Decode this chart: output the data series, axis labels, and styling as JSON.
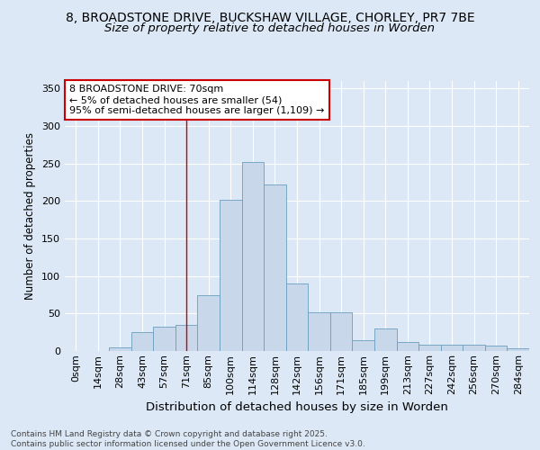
{
  "title1": "8, BROADSTONE DRIVE, BUCKSHAW VILLAGE, CHORLEY, PR7 7BE",
  "title2": "Size of property relative to detached houses in Worden",
  "xlabel": "Distribution of detached houses by size in Worden",
  "ylabel": "Number of detached properties",
  "categories": [
    "0sqm",
    "14sqm",
    "28sqm",
    "43sqm",
    "57sqm",
    "71sqm",
    "85sqm",
    "100sqm",
    "114sqm",
    "128sqm",
    "142sqm",
    "156sqm",
    "171sqm",
    "185sqm",
    "199sqm",
    "213sqm",
    "227sqm",
    "242sqm",
    "256sqm",
    "270sqm",
    "284sqm"
  ],
  "values": [
    0,
    0,
    5,
    25,
    33,
    35,
    75,
    202,
    252,
    222,
    90,
    52,
    52,
    15,
    30,
    12,
    9,
    9,
    9,
    7,
    4
  ],
  "bar_color": "#c8d8ea",
  "bar_edge_color": "#6a9fc0",
  "red_line_x": 5,
  "annotation_text": "8 BROADSTONE DRIVE: 70sqm\n← 5% of detached houses are smaller (54)\n95% of semi-detached houses are larger (1,109) →",
  "annotation_box_color": "#ffffff",
  "annotation_box_edge": "#cc0000",
  "ylim": [
    0,
    360
  ],
  "yticks": [
    0,
    50,
    100,
    150,
    200,
    250,
    300,
    350
  ],
  "bg_color": "#dce8f5",
  "plot_bg": "#dce8f5",
  "footnote": "Contains HM Land Registry data © Crown copyright and database right 2025.\nContains public sector information licensed under the Open Government Licence v3.0.",
  "title1_fontsize": 10,
  "title2_fontsize": 9.5,
  "xlabel_fontsize": 9.5,
  "ylabel_fontsize": 8.5,
  "tick_fontsize": 8,
  "annot_fontsize": 8,
  "footnote_fontsize": 6.5
}
